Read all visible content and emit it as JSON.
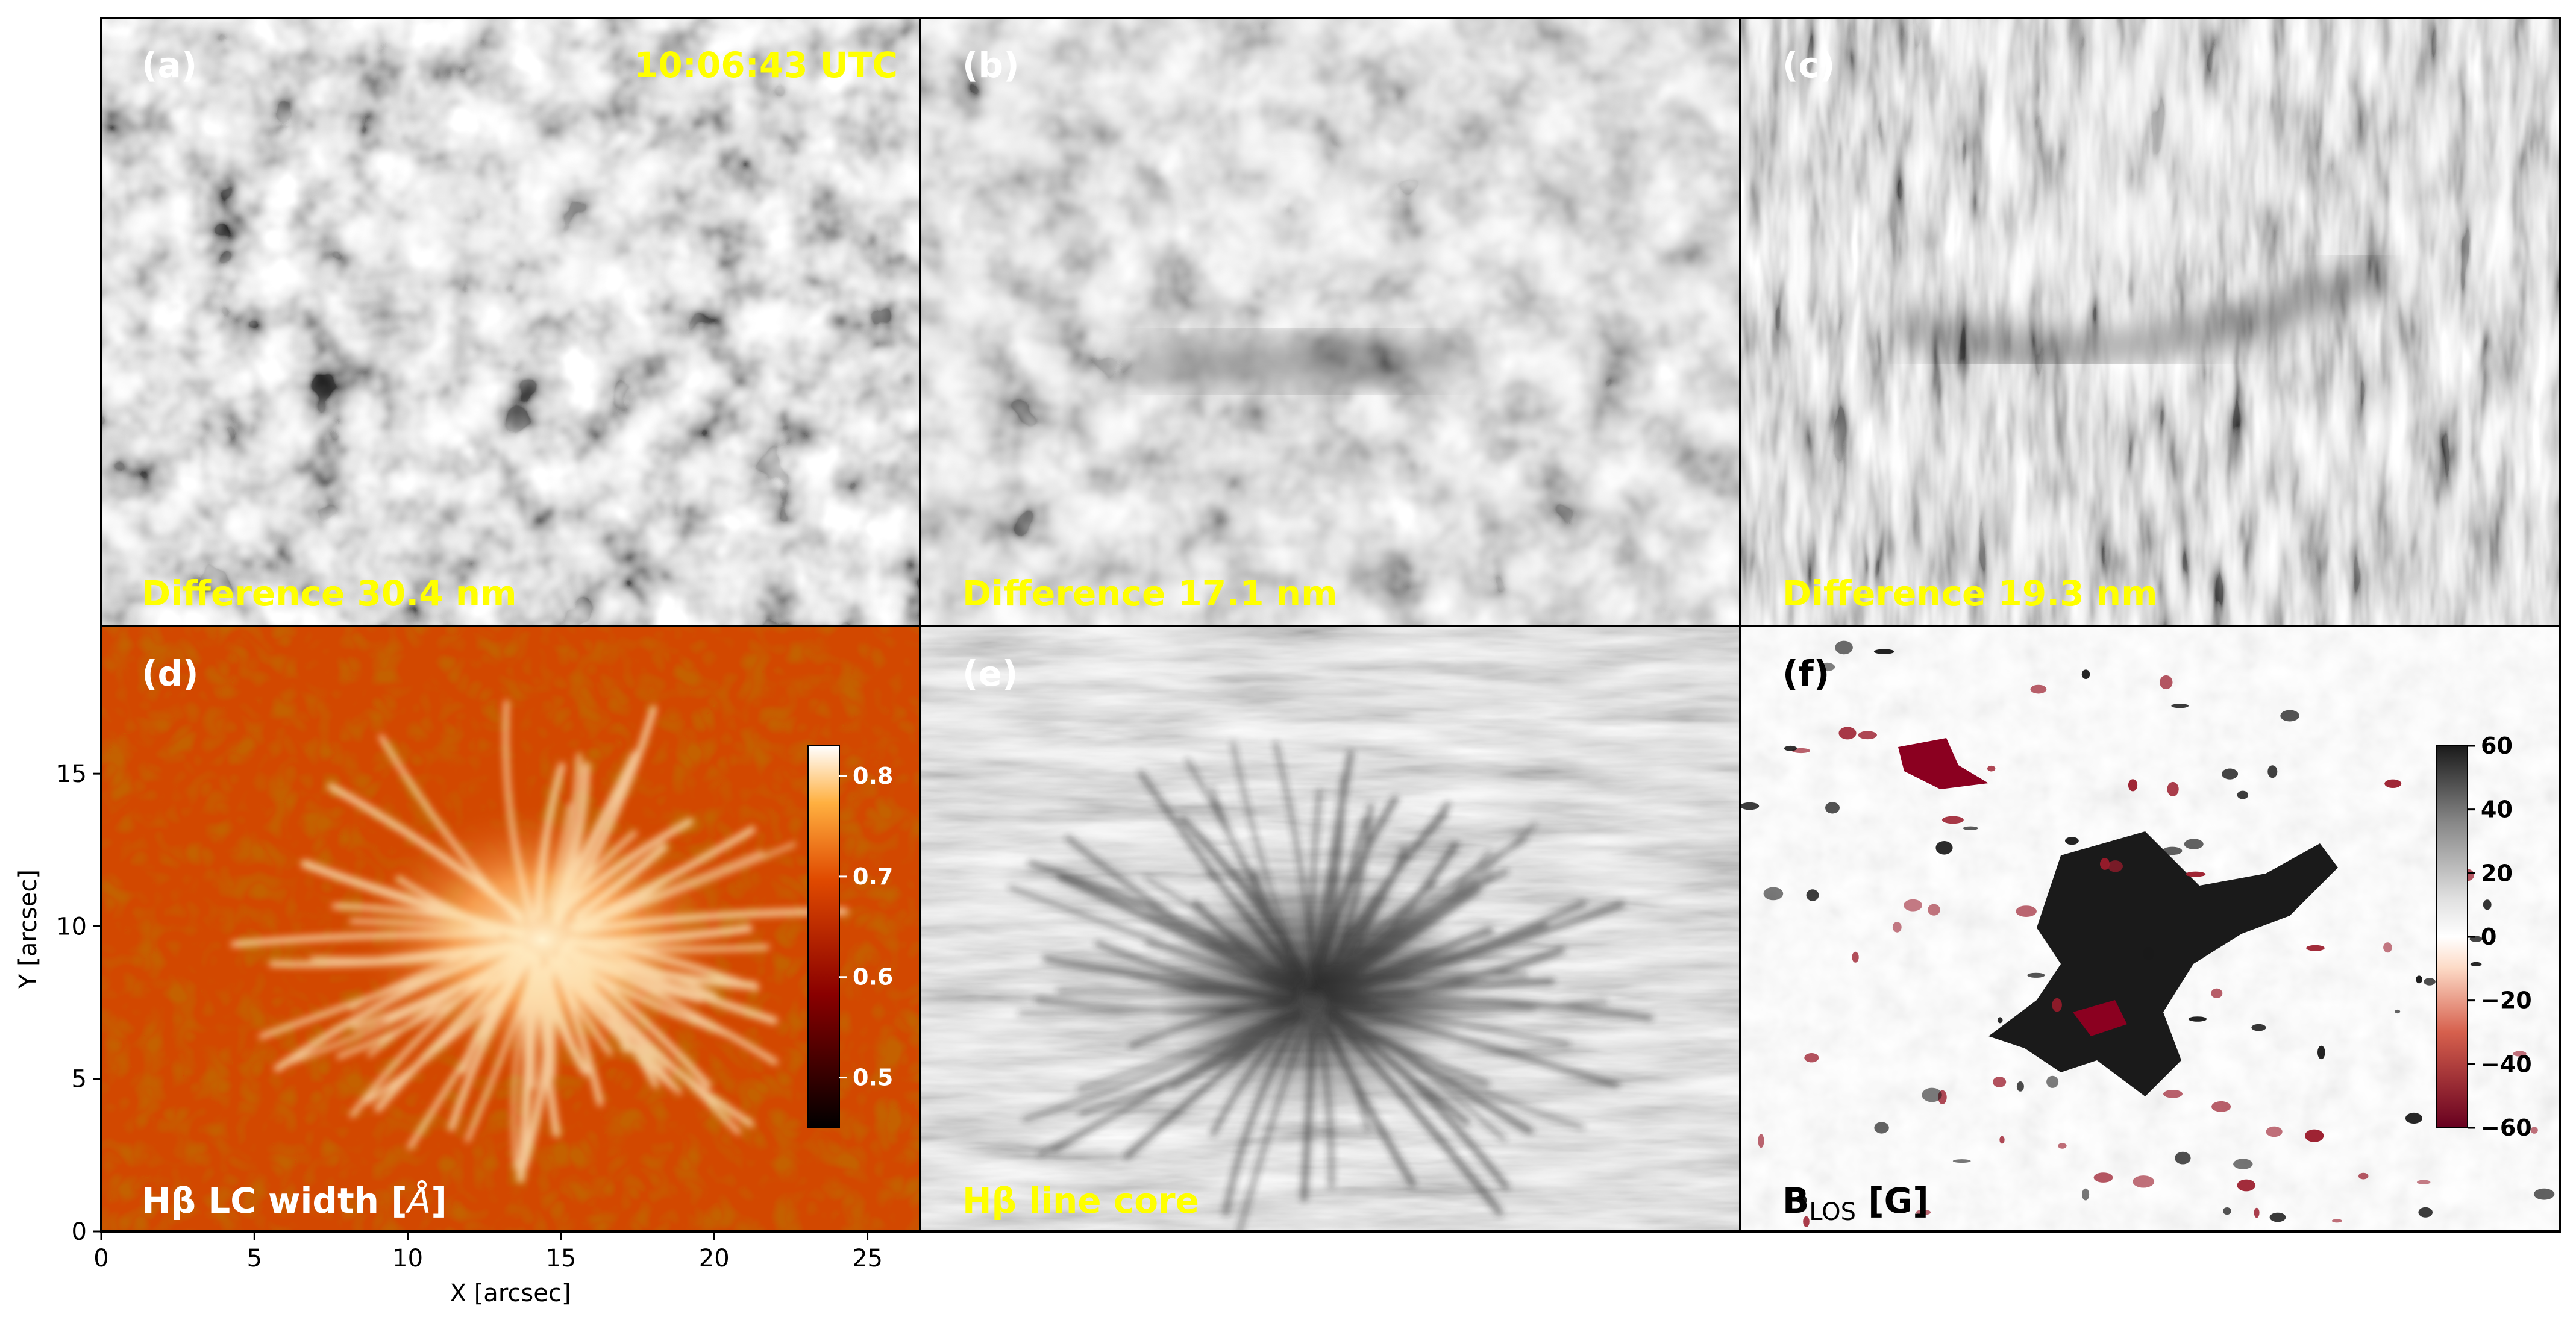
{
  "chart_data": {
    "type": "heatmap",
    "panels": [
      {
        "id": "a",
        "letter": "(a)",
        "letter_color": "#ffffff",
        "label": "Difference 30.4 nm",
        "label_color": "#ffff00",
        "timestamp": "10:06:43 UTC",
        "colormap": "gray",
        "texture": "blocky"
      },
      {
        "id": "b",
        "letter": "(b)",
        "letter_color": "#ffffff",
        "label": "Difference 17.1 nm",
        "label_color": "#ffff00",
        "colormap": "gray",
        "texture": "blocky"
      },
      {
        "id": "c",
        "letter": "(c)",
        "letter_color": "#ffffff",
        "label": "Difference 19.3 nm",
        "label_color": "#ffff00",
        "colormap": "gray",
        "texture": "streaky"
      },
      {
        "id": "d",
        "letter": "(d)",
        "letter_color": "#ffffff",
        "label_main": "Hβ LC width [",
        "label_unit": "Å",
        "label_end": "]",
        "label_color": "#ffffff",
        "colormap": "hot",
        "colorbar": {
          "ticks": [
            "0.8",
            "0.7",
            "0.6",
            "0.5"
          ],
          "tick_values": [
            0.8,
            0.7,
            0.6,
            0.5
          ],
          "range": [
            0.45,
            0.83
          ],
          "tick_color": "#ffffff"
        }
      },
      {
        "id": "e",
        "letter": "(e)",
        "letter_color": "#ffffff",
        "label": "Hβ line core",
        "label_color": "#ffff00",
        "colormap": "gray",
        "texture": "fibrils"
      },
      {
        "id": "f",
        "letter": "(f)",
        "letter_color": "#000000",
        "label_main": "B",
        "label_sub": "LOS",
        "label_end": " [G]",
        "label_color": "#000000",
        "colormap": "RdGy",
        "colorbar": {
          "ticks": [
            "60",
            "40",
            "20",
            "0",
            "−20",
            "−40",
            "−60"
          ],
          "tick_values": [
            60,
            40,
            20,
            0,
            -20,
            -40,
            -60
          ],
          "range": [
            -60,
            60
          ],
          "tick_color": "#000000"
        }
      }
    ],
    "xlabel": "X [arcsec]",
    "ylabel": "Y [arcsec]",
    "xlim": [
      0,
      26.7
    ],
    "ylim": [
      0,
      19.8
    ],
    "xticks": [
      0,
      5,
      10,
      15,
      20,
      25
    ],
    "yticks": [
      0,
      5,
      10,
      15
    ],
    "colors": {
      "highlight_yellow": "#ffff00",
      "hot_dark": "#7a1500",
      "hot_mid": "#d44a00",
      "hot_bright": "#ffe8b0",
      "field_black": "#1a1a1a",
      "field_red": "#8b0020"
    }
  }
}
